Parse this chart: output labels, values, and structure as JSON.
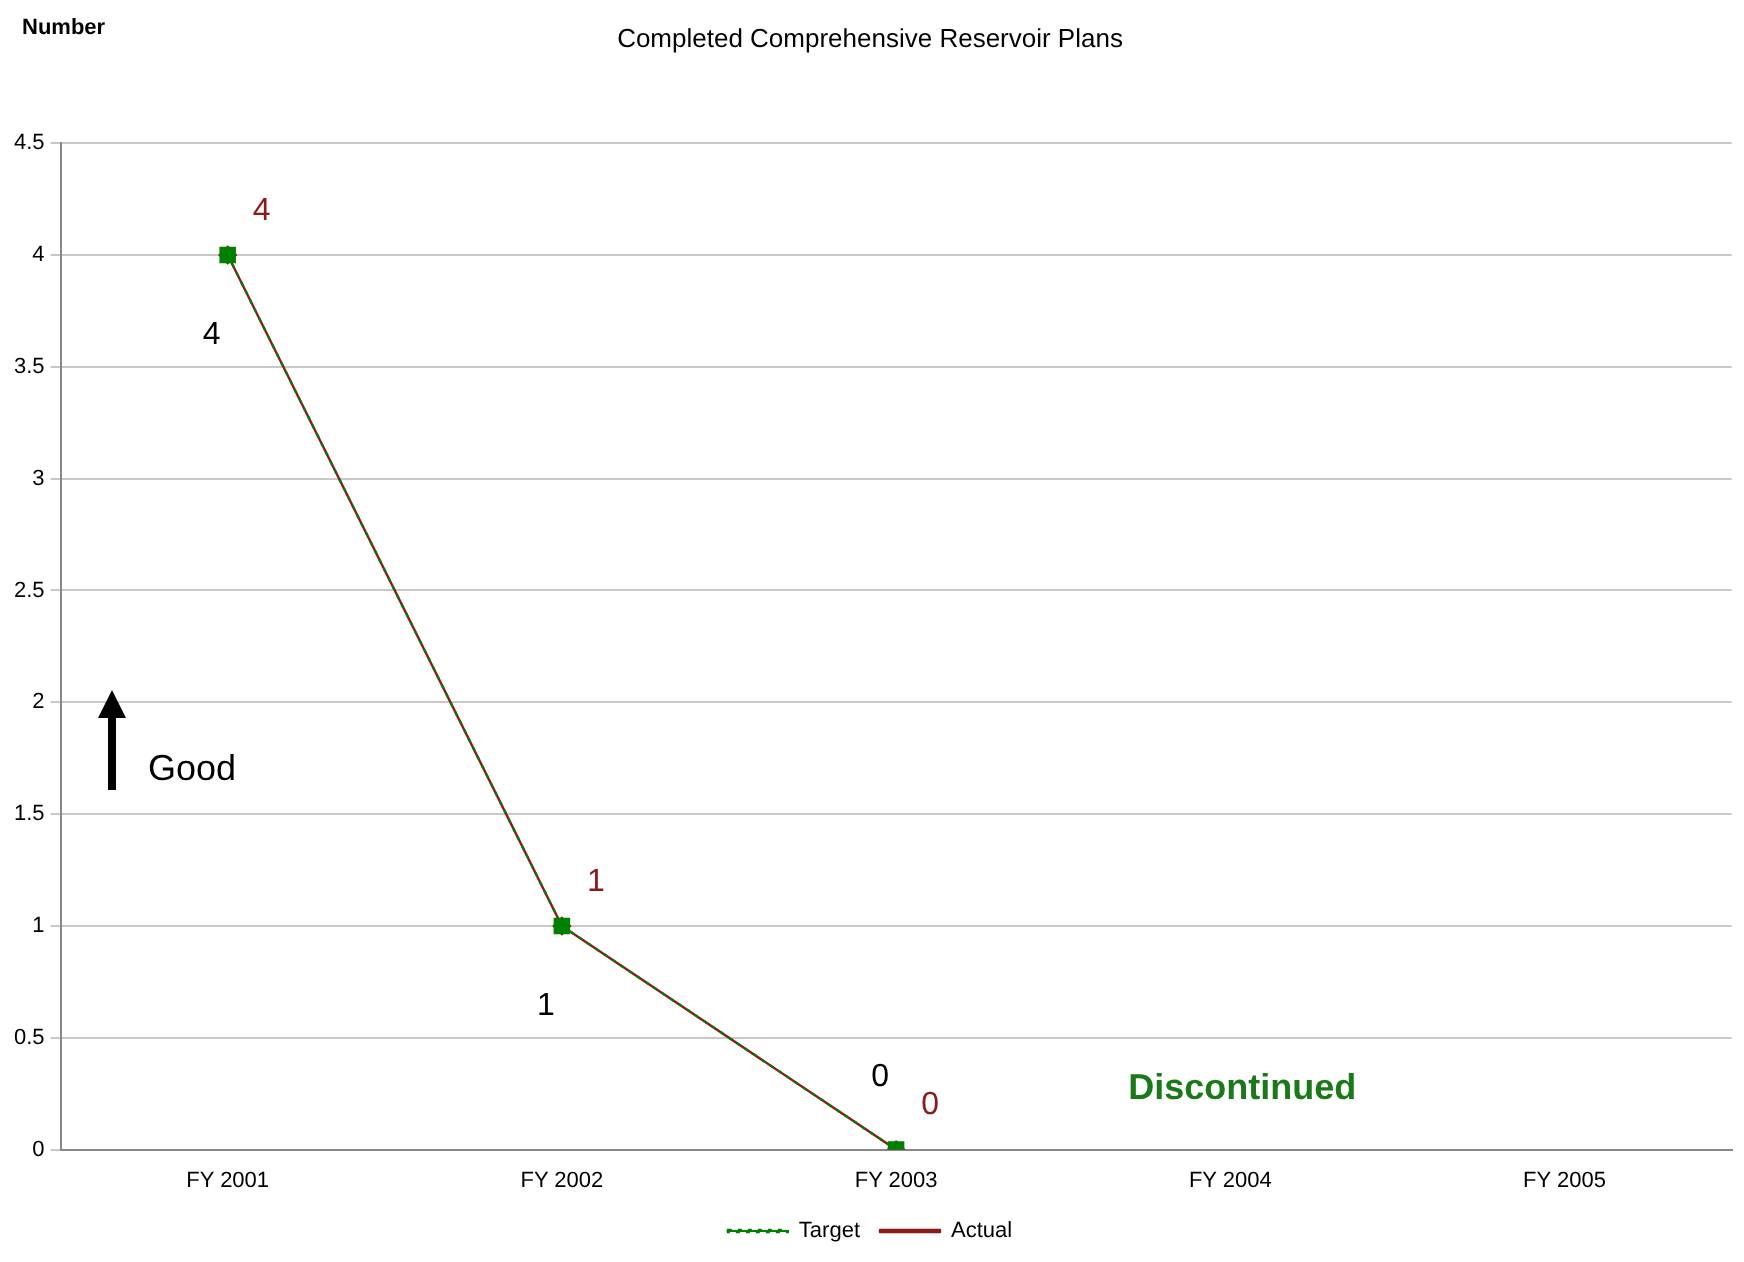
{
  "chart_data": {
    "type": "line",
    "title": "Completed Comprehensive Reservoir Plans",
    "ylabel": "Number",
    "categories": [
      "FY 2001",
      "FY 2002",
      "FY 2003",
      "FY 2004",
      "FY 2005"
    ],
    "series": [
      {
        "name": "Actual",
        "color": "#8b1a1a",
        "values": [
          4,
          1,
          0,
          null,
          null
        ],
        "marker": "diamond",
        "line_style": "solid"
      },
      {
        "name": "Target",
        "color": "#008000",
        "values": [
          4,
          1,
          0,
          null,
          null
        ],
        "marker": "square",
        "line_style": "dotted"
      }
    ],
    "ylim": [
      0,
      4.5
    ],
    "yticks": [
      0,
      0.5,
      1,
      1.5,
      2,
      2.5,
      3,
      3.5,
      4,
      4.5
    ],
    "grid": "y",
    "legend": "bottom",
    "data_labels": true,
    "annotations": [
      "Good",
      "Discontinued"
    ]
  }
}
